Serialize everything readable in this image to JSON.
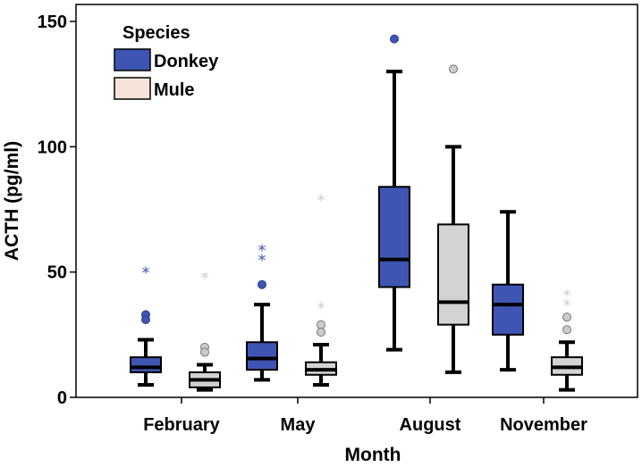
{
  "chart_data": {
    "type": "boxplot",
    "xlabel": "Month",
    "ylabel": "ACTH (pg/ml)",
    "categories": [
      "February",
      "May",
      "August",
      "November"
    ],
    "ylim": [
      0,
      150
    ],
    "yticks": [
      0,
      50,
      100,
      150
    ],
    "legend": {
      "title": "Species",
      "placement": "top-left",
      "entries": [
        {
          "name": "Donkey",
          "color": "#3f55b3"
        },
        {
          "name": "Mule",
          "color": "#f7e4d9"
        }
      ]
    },
    "series": [
      {
        "name": "Donkey",
        "color": "#3f55b3",
        "median_color": "#000000",
        "outlier_color": "#3f55b3",
        "boxes": [
          {
            "category": "February",
            "whisker_low": 5,
            "q1": 10,
            "median": 12,
            "q3": 16,
            "whisker_high": 23,
            "outliers": [
              33,
              31
            ],
            "extremes": [
              50
            ]
          },
          {
            "category": "May",
            "whisker_low": 7,
            "q1": 11,
            "median": 15.5,
            "q3": 22,
            "whisker_high": 37,
            "outliers": [
              45
            ],
            "extremes": [
              59,
              55
            ]
          },
          {
            "category": "August",
            "whisker_low": 19,
            "q1": 44,
            "median": 55,
            "q3": 84,
            "whisker_high": 130,
            "outliers": [
              143
            ],
            "extremes": []
          },
          {
            "category": "November",
            "whisker_low": 11,
            "q1": 25,
            "median": 37,
            "q3": 45,
            "whisker_high": 74,
            "outliers": [],
            "extremes": []
          }
        ]
      },
      {
        "name": "Mule",
        "color": "#d3d3d3",
        "median_color": "#000000",
        "outlier_color": "#cccccc",
        "boxes": [
          {
            "category": "February",
            "whisker_low": 3,
            "q1": 4,
            "median": 7,
            "q3": 10,
            "whisker_high": 13,
            "outliers": [
              20,
              18
            ],
            "extremes": [
              48
            ]
          },
          {
            "category": "May",
            "whisker_low": 5,
            "q1": 9,
            "median": 11,
            "q3": 14,
            "whisker_high": 21,
            "outliers": [
              29,
              26
            ],
            "extremes": [
              79,
              36
            ]
          },
          {
            "category": "August",
            "whisker_low": 10,
            "q1": 29,
            "median": 38,
            "q3": 69,
            "whisker_high": 100,
            "outliers": [
              131
            ],
            "extremes": []
          },
          {
            "category": "November",
            "whisker_low": 3,
            "q1": 9,
            "median": 12,
            "q3": 16,
            "whisker_high": 22,
            "outliers": [
              32,
              27
            ],
            "extremes": [
              41,
              37
            ]
          }
        ]
      }
    ]
  }
}
